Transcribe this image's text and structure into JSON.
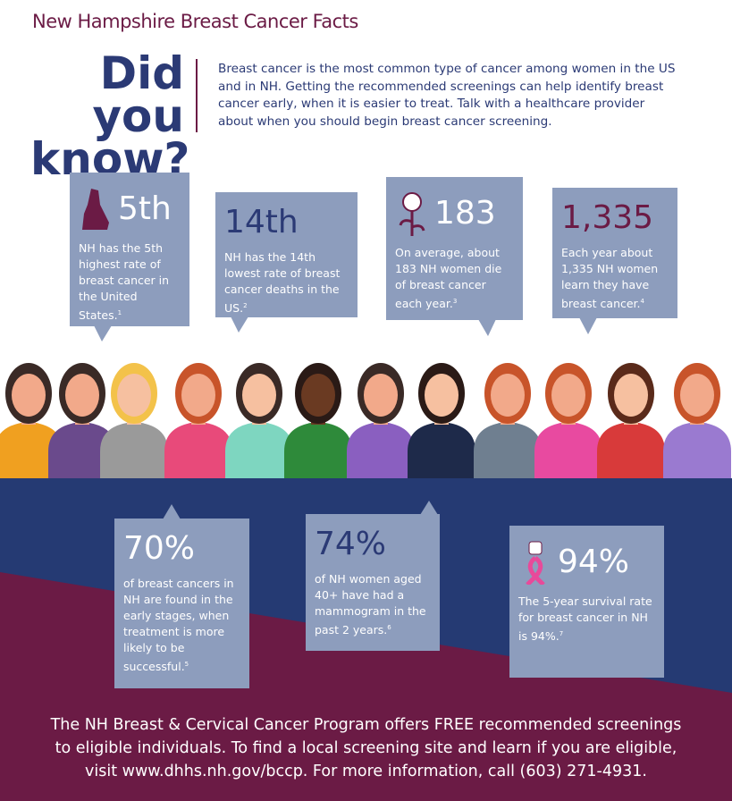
{
  "header": {
    "title": "New Hampshire Breast Cancer Facts",
    "headline": [
      "Did you",
      "know?"
    ],
    "intro": "Breast cancer is the most common type of cancer among women in the US and in NH. Getting the recommended screenings can help identify breast cancer early, when it is easier to treat. Talk with a healthcare provider about when you should begin breast cancer screening."
  },
  "facts": [
    {
      "stat": "5th",
      "text": "NH has the 5th highest rate of breast cancer in the United States.",
      "note": "1"
    },
    {
      "stat": "14th",
      "text": "NH has the 14th lowest rate of breast cancer deaths in the US.",
      "note": "2"
    },
    {
      "stat": "183",
      "text": "On average, about 183 NH women die of breast cancer each year.",
      "note": "3"
    },
    {
      "stat": "1,335",
      "text": "Each year about 1,335 NH women learn they have breast cancer.",
      "note": "4"
    },
    {
      "stat": "70%",
      "text": "of breast cancers in NH are found in the early stages, when treatment is more likely to be successful.",
      "note": "5"
    },
    {
      "stat": "74%",
      "text": "of NH women aged 40+ have had a mammogram in the past 2 years.",
      "note": "6"
    },
    {
      "stat": "94%",
      "text": "The 5-year survival rate for breast cancer in NH is 94%.",
      "note": "7"
    }
  ],
  "footer": {
    "lines": [
      "The NH Breast & Cervical Cancer Program offers FREE recommended screenings",
      "to eligible individuals. To find a local screening site and learn if you are eligible,",
      "visit www.dhhs.nh.gov/bccp. For more information, call (603) 271-4931."
    ]
  }
}
